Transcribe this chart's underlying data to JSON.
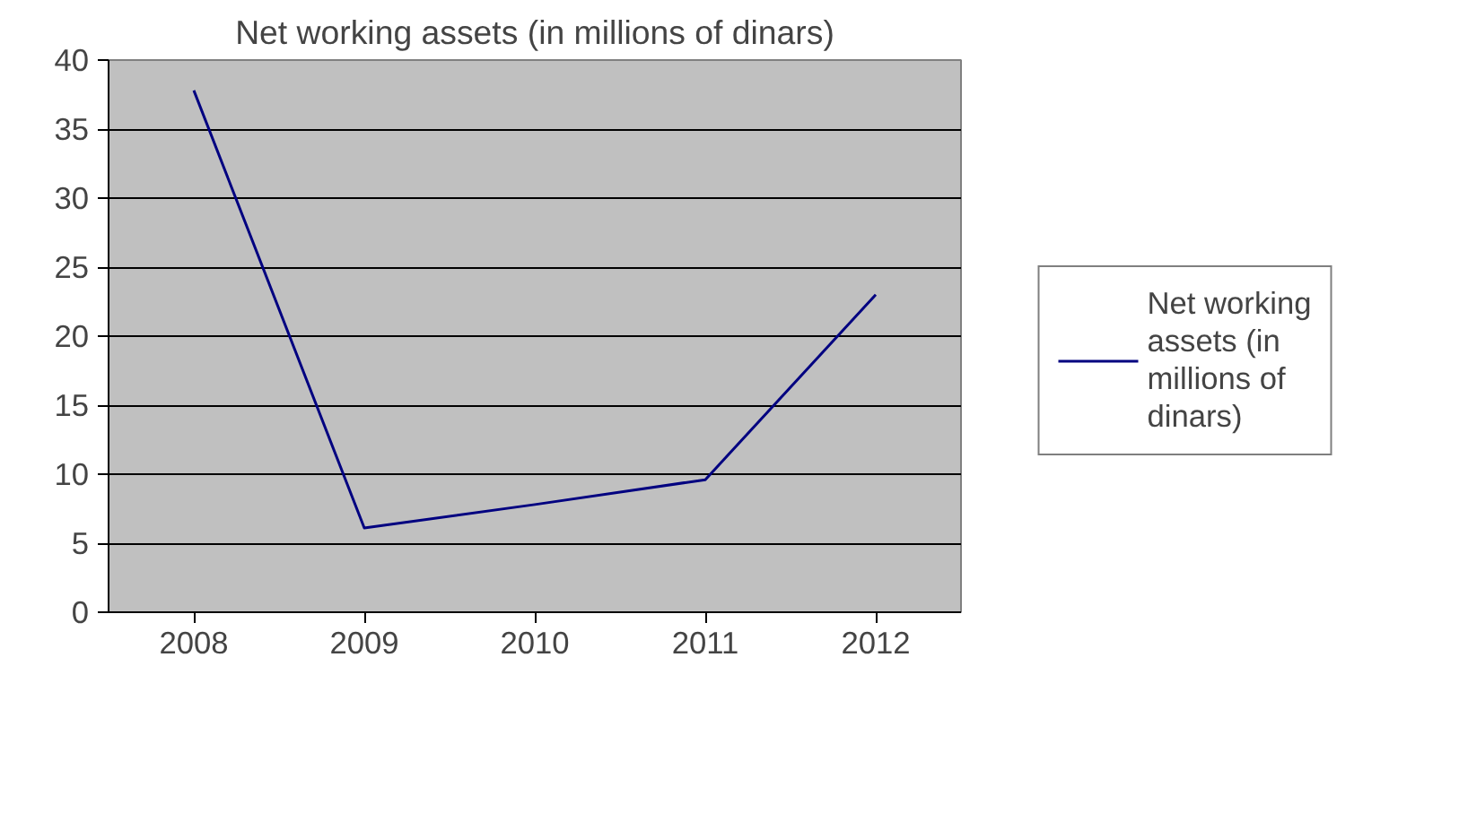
{
  "chart_data": {
    "type": "line",
    "title": "Net working assets (in millions of dinars)",
    "categories": [
      "2008",
      "2009",
      "2010",
      "2011",
      "2012"
    ],
    "series": [
      {
        "name": "Net working assets (in millions of dinars)",
        "color": "#000080",
        "values": [
          37.8,
          6.1,
          7.8,
          9.6,
          23
        ]
      }
    ],
    "ylim": [
      0,
      40
    ],
    "yticks": [
      0,
      5,
      10,
      15,
      20,
      25,
      30,
      35,
      40
    ],
    "grid": "y",
    "legend": "right",
    "marker": "none",
    "line_style": "solid"
  }
}
